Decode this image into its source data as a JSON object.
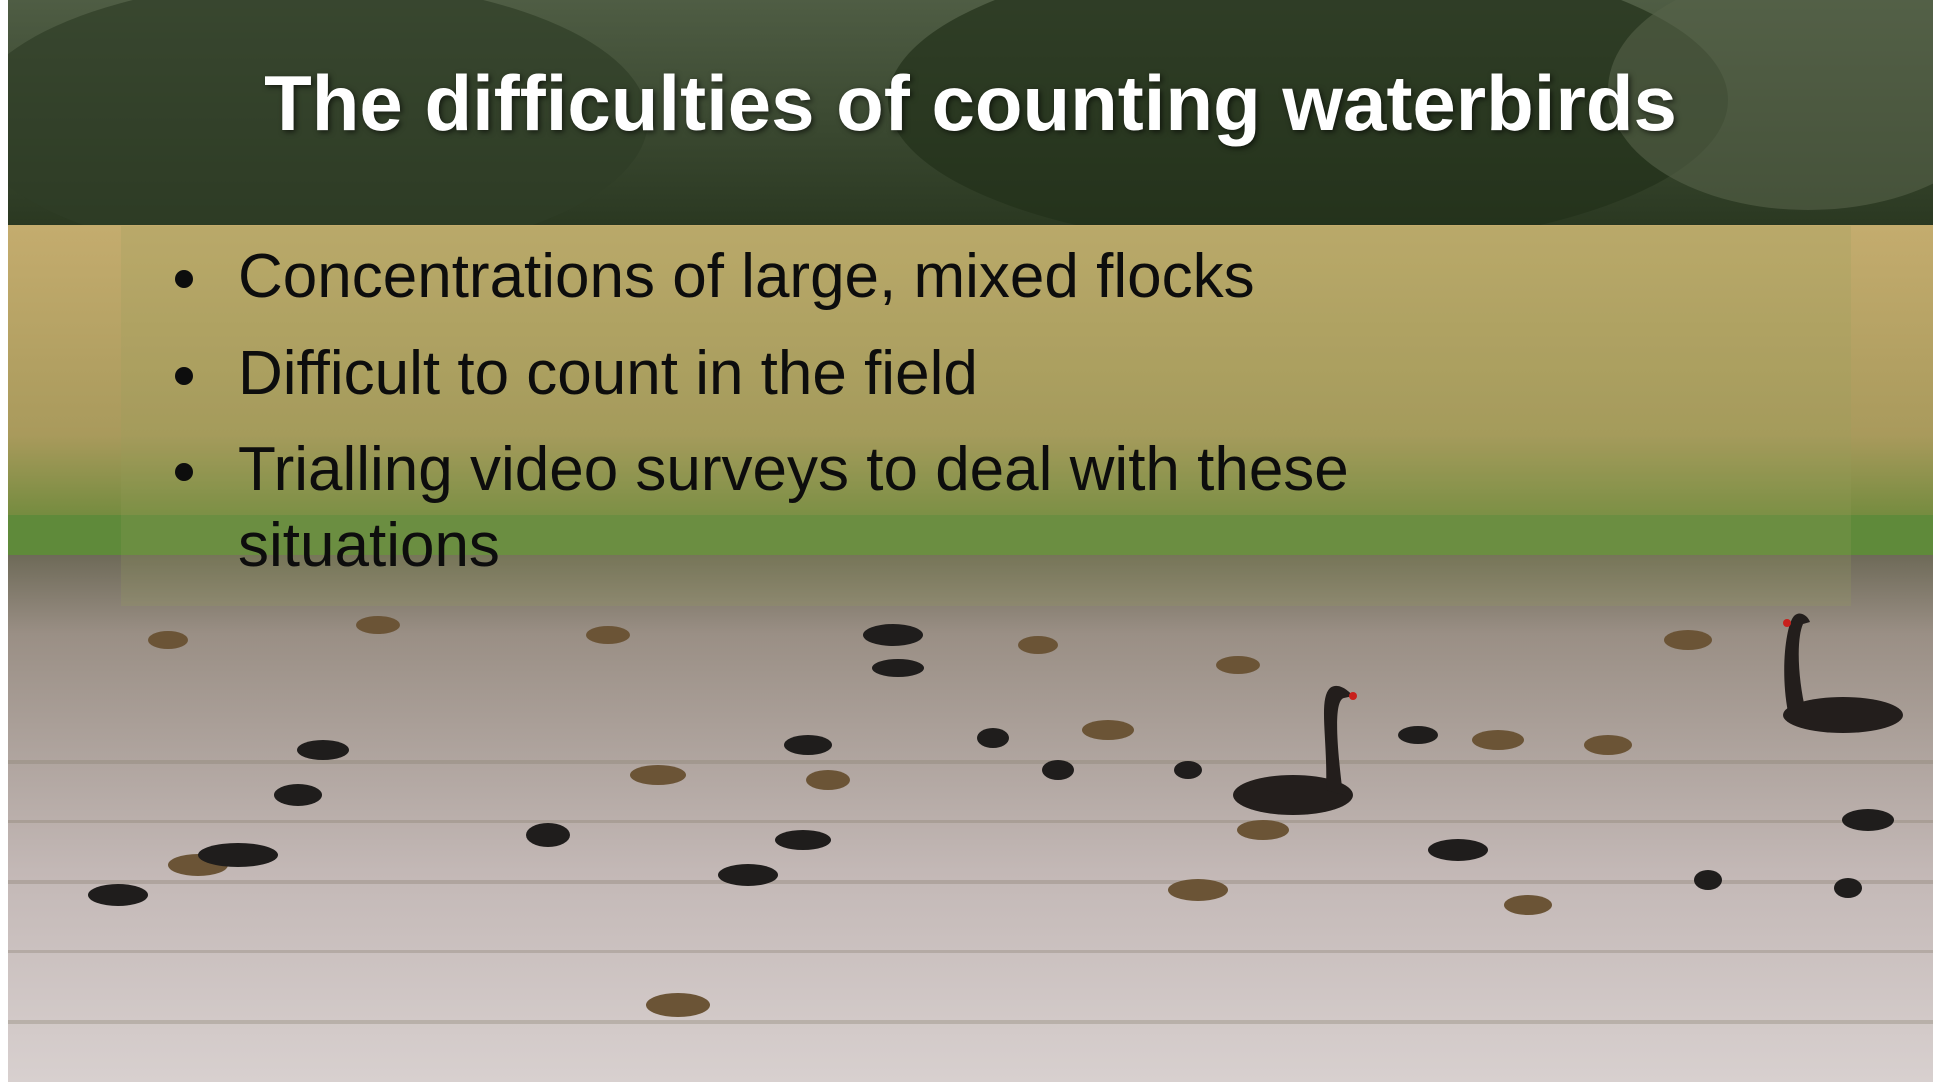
{
  "slide": {
    "title": "The difficulties of counting waterbirds",
    "bullets": [
      "Concentrations of large, mixed flocks",
      "Difficult to count in the field",
      "Trialling video surveys to deal with these situations"
    ]
  }
}
